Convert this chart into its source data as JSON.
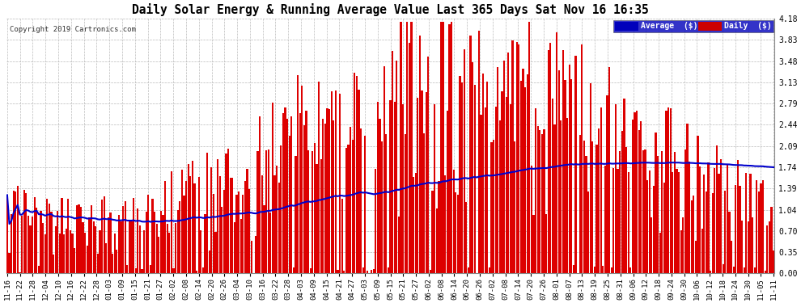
{
  "title": "Daily Solar Energy & Running Average Value Last 365 Days Sat Nov 16 16:35",
  "copyright_text": "Copyright 2019 Cartronics.com",
  "legend_labels": [
    "Average  ($)",
    "Daily  ($)"
  ],
  "legend_colors": [
    "#0000bb",
    "#cc0000"
  ],
  "bar_color": "#dd0000",
  "line_color": "#0000cc",
  "background_color": "#ffffff",
  "plot_bg_color": "#ffffff",
  "grid_color": "#bbbbbb",
  "ylim": [
    0.0,
    4.18
  ],
  "yticks": [
    0.0,
    0.35,
    0.7,
    1.04,
    1.39,
    1.74,
    2.09,
    2.44,
    2.79,
    3.13,
    3.48,
    3.83,
    4.18
  ],
  "figsize": [
    9.9,
    3.75
  ],
  "dpi": 100,
  "xtick_labels": [
    "11-16",
    "11-22",
    "11-28",
    "12-04",
    "12-10",
    "12-16",
    "12-22",
    "12-28",
    "01-03",
    "01-09",
    "01-15",
    "01-21",
    "01-27",
    "02-02",
    "02-08",
    "02-14",
    "02-20",
    "02-26",
    "03-04",
    "03-10",
    "03-16",
    "03-22",
    "03-28",
    "04-03",
    "04-09",
    "04-15",
    "04-21",
    "04-27",
    "05-03",
    "05-09",
    "05-15",
    "05-21",
    "05-27",
    "06-02",
    "06-08",
    "06-14",
    "06-20",
    "06-26",
    "07-02",
    "07-08",
    "07-14",
    "07-20",
    "07-26",
    "08-01",
    "08-07",
    "08-13",
    "08-19",
    "08-25",
    "08-31",
    "09-06",
    "09-12",
    "09-18",
    "09-24",
    "09-30",
    "10-06",
    "10-12",
    "10-18",
    "10-24",
    "10-30",
    "11-05",
    "11-11"
  ]
}
